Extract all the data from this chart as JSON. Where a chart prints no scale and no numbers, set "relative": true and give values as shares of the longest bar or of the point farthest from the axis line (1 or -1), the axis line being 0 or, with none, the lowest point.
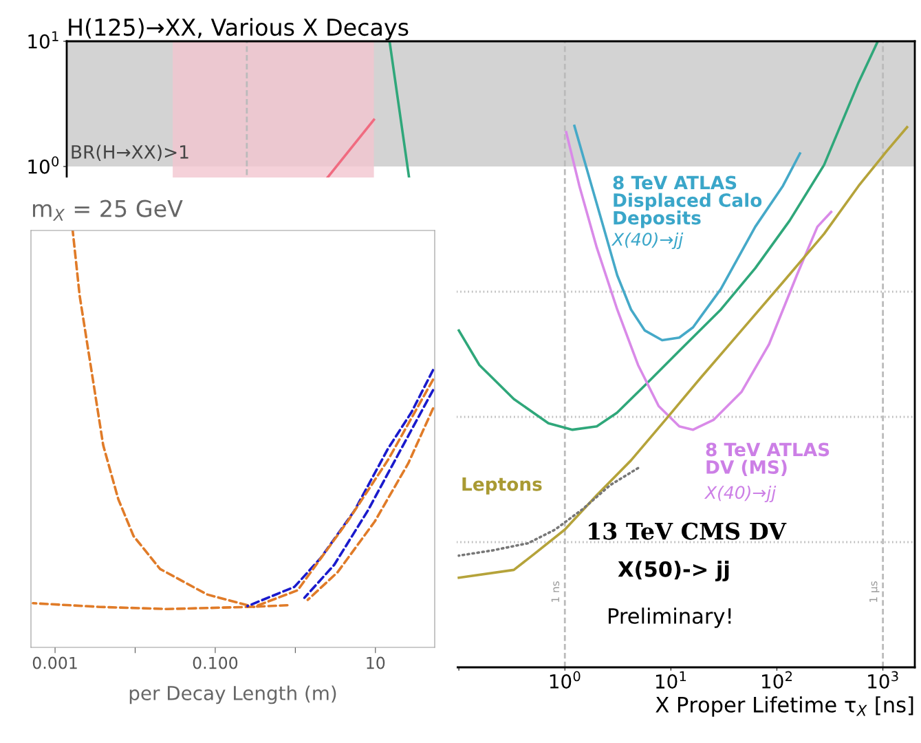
{
  "chart_data": [
    {
      "type": "line",
      "title": "H(125)→XX, Various X Decays",
      "xlabel": "X Proper Lifetime τ$_{X}$ [ns]",
      "log": "xy",
      "grid": false,
      "xlim": [
        2e-05,
        2000
      ],
      "ylim": [
        0.0001,
        10
      ],
      "xticks": [
        {
          "value": 0.1,
          "label": null
        },
        {
          "value": 1,
          "label": "10$^{0}$"
        },
        {
          "value": 10,
          "label": "10$^{1}$"
        },
        {
          "value": 100,
          "label": "10$^{2}$"
        },
        {
          "value": 1000,
          "label": "10$^{3}$"
        }
      ],
      "yticks": [
        {
          "value": 1,
          "label": "10$^{0}$"
        },
        {
          "value": 10,
          "label": "10$^{1}$"
        }
      ],
      "series": [
        {
          "color": "#f06b80",
          "line_style": "solid",
          "x": [
            0.00578,
            0.0158
          ],
          "values": [
            0.817,
            2.36
          ]
        },
        {
          "color": "#2fa77a",
          "line_style": "solid",
          "x": [
            0.0222,
            0.0339,
            0.05,
            0.1,
            0.156,
            0.33,
            0.7,
            1.18,
            2.0,
            3.1,
            5.7,
            12,
            29.6,
            62.5,
            132,
            279,
            590,
            895
          ],
          "values": [
            10,
            0.817,
            null,
            0.049,
            0.026,
            0.0139,
            0.0089,
            0.0079,
            0.0084,
            0.0108,
            0.0179,
            0.0337,
            0.072,
            0.154,
            0.37,
            1.03,
            4.7,
            10
          ]
        },
        {
          "color": "#45a9c8",
          "line_style": "solid",
          "x": [
            1.23,
            1.71,
            2.31,
            3.12,
            4.21,
            5.68,
            8.27,
            12.0,
            16.2,
            29.6,
            62.5,
            114,
            165
          ],
          "values": [
            2.11,
            0.8,
            0.33,
            0.135,
            0.072,
            0.049,
            0.041,
            0.043,
            0.052,
            0.105,
            0.33,
            0.7,
            1.27
          ]
        },
        {
          "color": "#d98ae8",
          "line_style": "solid",
          "x": [
            1.03,
            1.37,
            2.0,
            3.12,
            4.9,
            7.67,
            12.0,
            16.2,
            25.4,
            46.3,
            84.3,
            154,
            241,
            325
          ],
          "values": [
            1.88,
            0.7,
            0.225,
            0.072,
            0.026,
            0.0122,
            0.0084,
            0.0079,
            0.0095,
            0.0158,
            0.038,
            0.135,
            0.33,
            0.434
          ]
        },
        {
          "color": "#b5a33a",
          "line_style": "solid",
          "x": [
            0.1,
            0.33,
            0.52,
            1,
            2.0,
            4.21,
            8.9,
            18.9,
            46.3,
            114,
            279,
            590,
            1080,
            1690
          ],
          "values": [
            0.00052,
            0.0006,
            0.00081,
            0.00126,
            0.00237,
            0.0045,
            0.0095,
            0.0203,
            0.049,
            0.119,
            0.29,
            0.7,
            1.32,
            2.06
          ]
        },
        {
          "color": "#777777",
          "line_style": "dotted",
          "x": [
            0.1,
            0.21,
            0.45,
            0.81,
            1.48,
            2.69,
            4.9
          ],
          "values": [
            0.00078,
            0.00086,
            0.00098,
            0.00126,
            0.00184,
            0.00286,
            0.0039
          ]
        }
      ],
      "bands": [
        {
          "axis": "y",
          "from": 1,
          "to": 10,
          "label": "BR(H→XX)>1",
          "color": "#c8c8c8"
        },
        {
          "axis": "x",
          "from": 0.0002,
          "to": 0.0158,
          "color": "#f3c6cf"
        }
      ],
      "ref_lines": [
        {
          "axis": "x",
          "value": 0.001,
          "line_style": "dashed"
        },
        {
          "axis": "x",
          "value": 1,
          "label": "1 ns",
          "line_style": "dashed"
        },
        {
          "axis": "x",
          "value": 1000,
          "label": "1 μs",
          "line_style": "dashed"
        },
        {
          "axis": "y",
          "value": 0.1,
          "line_style": "dotted"
        },
        {
          "axis": "y",
          "value": 0.01,
          "line_style": "dotted"
        },
        {
          "axis": "y",
          "value": 0.001,
          "line_style": "dotted"
        }
      ],
      "annotations": [
        "8 TeV ATLAS\nDisplaced Calo\nDeposits",
        "X(40)→jj",
        "8 TeV ATLAS\nDV (MS)",
        "X(40)→jj",
        "Leptons",
        "13 TeV CMS DV",
        "X(50)-> jj",
        "Preliminary!"
      ]
    },
    {
      "type": "line",
      "title": "m$_{X}$ = 25 GeV",
      "xlabel": "per Decay Length (m)",
      "log": "x",
      "relative": true,
      "line_style": "dashed",
      "grid": false,
      "xlim": [
        0.0005,
        55
      ],
      "xticks": [
        {
          "value": 0.001,
          "label": "0.001"
        },
        {
          "value": 0.01,
          "label": null
        },
        {
          "value": 0.1,
          "label": "0.100"
        },
        {
          "value": 1,
          "label": null
        },
        {
          "value": 10,
          "label": "10"
        }
      ],
      "series": [
        {
          "color": "#e07b28",
          "x": [
            0.00166,
            0.00203,
            0.00287,
            0.00399,
            0.00617,
            0.00955,
            0.0205,
            0.0789,
            0.253
          ],
          "values": [
            1,
            0.843,
            0.66,
            0.485,
            0.355,
            0.267,
            0.188,
            0.127,
            0.101
          ]
        },
        {
          "color": "#e07b28",
          "x": [
            0.00053,
            0.00364,
            0.0251,
            0.253,
            0.796
          ],
          "values": [
            0.106,
            0.097,
            0.092,
            0.097,
            0.101
          ]
        },
        {
          "color": "#1a1acc",
          "x": [
            0.253,
            0.973,
            2.09,
            5.48,
            14.4,
            28.2,
            52.4
          ],
          "values": [
            0.099,
            0.145,
            0.215,
            0.328,
            0.477,
            0.564,
            0.665
          ]
        },
        {
          "color": "#e07b28",
          "x": [
            0.303,
            1.07,
            4.49,
            14.4,
            52.4
          ],
          "values": [
            0.097,
            0.137,
            0.302,
            0.45,
            0.642
          ]
        },
        {
          "color": "#1a1acc",
          "x": [
            1.3,
            3.06,
            8.04,
            21.1,
            52.4
          ],
          "values": [
            0.119,
            0.198,
            0.328,
            0.477,
            0.617
          ]
        },
        {
          "color": "#e07b28",
          "x": [
            1.43,
            3.36,
            9.82,
            25.8,
            52.4
          ],
          "values": [
            0.114,
            0.18,
            0.302,
            0.442,
            0.573
          ]
        }
      ]
    }
  ]
}
